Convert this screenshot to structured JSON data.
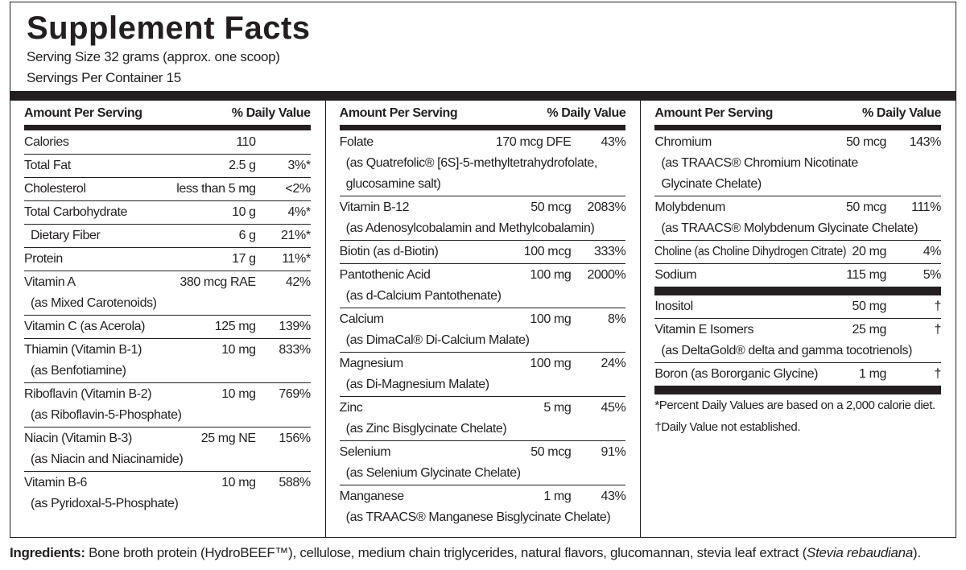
{
  "title": "Supplement Facts",
  "serving_size": "Serving Size 32 grams (approx. one scoop)",
  "servings_per_container": "Servings Per Container 15",
  "columns": [
    {
      "header": {
        "amount": "Amount Per Serving",
        "dv": "% Daily Value"
      },
      "rows": [
        {
          "name": "Calories",
          "amount": "110"
        },
        {
          "name": "Total Fat",
          "amount": "2.5 g",
          "dv": "3%*"
        },
        {
          "name": "Cholesterol",
          "amount": "less than 5 mg",
          "dv": "<2%"
        },
        {
          "name": "Total Carbohydrate",
          "amount": "10 g",
          "dv": "4%*"
        },
        {
          "name": "Dietary Fiber",
          "amount": "6 g",
          "dv": "21%*",
          "indented": true
        },
        {
          "name": "Protein",
          "amount": "17 g",
          "dv": "11%*"
        },
        {
          "name": "Vitamin A",
          "amount": "380 mcg RAE",
          "dv": "42%",
          "source": [
            "(as Mixed Carotenoids)"
          ]
        },
        {
          "name": "Vitamin C (as Acerola)",
          "amount": "125 mg",
          "dv": "139%"
        },
        {
          "name": "Thiamin (Vitamin B-1)",
          "amount": "10 mg",
          "dv": "833%",
          "source": [
            "(as Benfotiamine)"
          ]
        },
        {
          "name": "Riboflavin (Vitamin B-2)",
          "amount": "10 mg",
          "dv": "769%",
          "source": [
            "(as Riboflavin-5-Phosphate)"
          ]
        },
        {
          "name": "Niacin (Vitamin B-3)",
          "amount": "25 mg NE",
          "dv": "156%",
          "source": [
            "(as Niacin and Niacinamide)"
          ]
        },
        {
          "name": "Vitamin B-6",
          "amount": "10 mg",
          "dv": "588%",
          "source": [
            "(as Pyridoxal-5-Phosphate)"
          ]
        }
      ]
    },
    {
      "header": {
        "amount": "Amount Per Serving",
        "dv": "% Daily Value"
      },
      "rows": [
        {
          "name": "Folate",
          "amount": "170 mcg DFE",
          "dv": "43%",
          "source": [
            "(as Quatrefolic® [6S]-5-methyltetrahydrofolate,",
            "glucosamine salt)"
          ]
        },
        {
          "name": "Vitamin B-12",
          "amount": "50 mcg",
          "dv": "2083%",
          "source": [
            "(as Adenosylcobalamin and Methylcobalamin)"
          ]
        },
        {
          "name": "Biotin (as d-Biotin)",
          "amount": "100 mcg",
          "dv": "333%"
        },
        {
          "name": "Pantothenic Acid",
          "amount": "100 mg",
          "dv": "2000%",
          "source": [
            "(as d-Calcium Pantothenate)"
          ]
        },
        {
          "name": "Calcium",
          "amount": "100 mg",
          "dv": "8%",
          "source": [
            "(as DimaCal® Di-Calcium Malate)"
          ]
        },
        {
          "name": "Magnesium",
          "amount": "100 mg",
          "dv": "24%",
          "source": [
            "(as Di-Magnesium Malate)"
          ]
        },
        {
          "name": "Zinc",
          "amount": "5 mg",
          "dv": "45%",
          "source": [
            "(as Zinc Bisglycinate Chelate)"
          ]
        },
        {
          "name": "Selenium",
          "amount": "50 mcg",
          "dv": "91%",
          "source": [
            "(as Selenium Glycinate Chelate)"
          ]
        },
        {
          "name": "Manganese",
          "amount": "1 mg",
          "dv": "43%",
          "source": [
            "(as TRAACS® Manganese Bisglycinate Chelate)"
          ]
        }
      ]
    },
    {
      "header": {
        "amount": "Amount Per Serving",
        "dv": "% Daily Value"
      },
      "rows": [
        {
          "name": "Chromium",
          "amount": "50 mcg",
          "dv": "143%",
          "source": [
            "(as TRAACS® Chromium Nicotinate",
            "Glycinate Chelate)"
          ]
        },
        {
          "name": "Molybdenum",
          "amount": "50 mcg",
          "dv": "111%",
          "source": [
            "(as TRAACS® Molybdenum Glycinate Chelate)"
          ]
        },
        {
          "name": "Choline (as Choline Dihydrogen Citrate)",
          "amount": "20 mg",
          "dv": "4%"
        },
        {
          "name": "Sodium",
          "amount": "115 mg",
          "dv": "5%"
        }
      ],
      "other_rows": [
        {
          "name": "Inositol",
          "amount": "50 mg",
          "dv": "†"
        },
        {
          "name": "Vitamin E Isomers",
          "amount": "25 mg",
          "dv": "†",
          "source": [
            "(as DeltaGold® delta and gamma tocotrienols)"
          ]
        },
        {
          "name": "Boron (as Bororganic Glycine)",
          "amount": "1 mg",
          "dv": "†"
        }
      ],
      "footnotes": [
        "*Percent Daily Values are based on a 2,000 calorie diet.",
        "†Daily Value not established."
      ]
    }
  ],
  "ingredients": {
    "label": "Ingredients:",
    "text": " Bone broth protein (HydroBEEF™), cellulose, medium chain triglycerides, natural flavors, glucomannan, stevia leaf extract (",
    "italic": "Stevia rebaudiana",
    "text_end": ")."
  }
}
